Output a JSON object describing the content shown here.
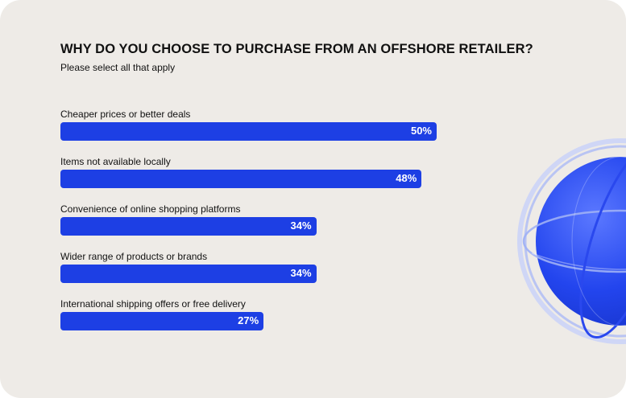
{
  "header": {
    "title": "WHY DO YOU CHOOSE TO PURCHASE FROM AN OFFSHORE RETAILER?",
    "subtitle": "Please select all that apply"
  },
  "colors": {
    "bar": "#1d3fe4",
    "background": "#eeebe7",
    "globe": "#2f4ff0"
  },
  "decoration": {
    "icon": "globe-icon"
  },
  "chart_data": {
    "type": "bar",
    "orientation": "horizontal",
    "title": "WHY DO YOU CHOOSE TO PURCHASE FROM AN OFFSHORE RETAILER?",
    "subtitle": "Please select all that apply",
    "categories": [
      "Cheaper prices or better deals",
      "Items not available locally",
      "Convenience of online shopping platforms",
      "Wider range of products or brands",
      "International shipping offers or free delivery"
    ],
    "values": [
      50,
      48,
      34,
      34,
      27
    ],
    "value_labels": [
      "50%",
      "48%",
      "34%",
      "34%",
      "27%"
    ],
    "unit": "%",
    "xlim": [
      0,
      100
    ],
    "grid": false,
    "legend": "none"
  }
}
